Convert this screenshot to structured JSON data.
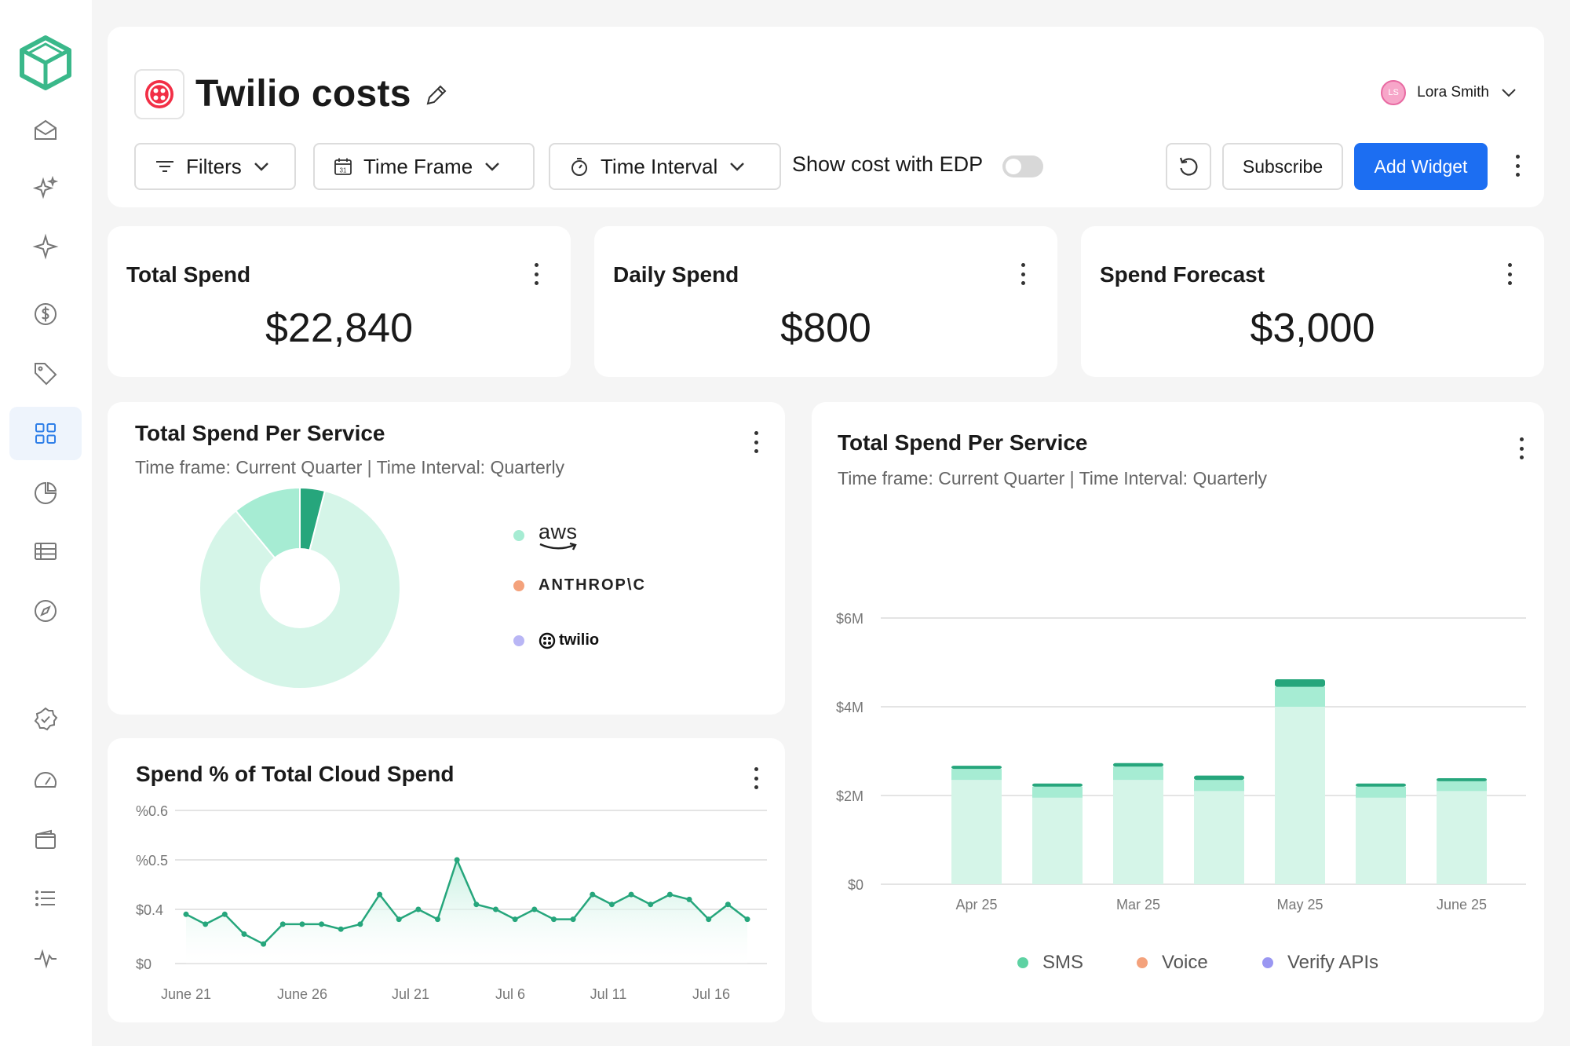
{
  "page": {
    "title": "Twilio costs"
  },
  "user": {
    "initials": "LS",
    "name": "Lora Smith"
  },
  "toolbar": {
    "filters_label": "Filters",
    "time_frame_label": "Time Frame",
    "time_interval_label": "Time Interval",
    "edp_label": "Show cost with EDP",
    "subscribe_label": "Subscribe",
    "add_widget_label": "Add Widget"
  },
  "kpis": [
    {
      "title": "Total Spend",
      "value": "$22,840"
    },
    {
      "title": "Daily Spend",
      "value": "$800"
    },
    {
      "title": "Spend Forecast",
      "value": "$3,000"
    }
  ],
  "pie_widget": {
    "title": "Total Spend Per Service",
    "subtitle": "Time frame: Current Quarter | Time Interval: Quarterly",
    "legend": [
      {
        "label": "aws",
        "color": "#a6ecd3"
      },
      {
        "label": "ANTHROP\\C",
        "color": "#f4a27c"
      },
      {
        "label": "twilio",
        "color": "#b9b6f5"
      }
    ]
  },
  "line_widget": {
    "title": "Spend % of Total Cloud Spend"
  },
  "bar_widget": {
    "title": "Total Spend Per Service",
    "subtitle": "Time frame: Current Quarter | Time Interval: Quarterly",
    "legend": [
      {
        "label": "SMS",
        "color": "#5ed2a3"
      },
      {
        "label": "Voice",
        "color": "#f4a27c"
      },
      {
        "label": "Verify APIs",
        "color": "#9a97f2"
      }
    ]
  },
  "colors": {
    "accent": "#1c6ef2",
    "brand_green": "#3ab88a",
    "twilio_red": "#f22f46"
  },
  "chart_data": [
    {
      "type": "pie",
      "title": "Total Spend Per Service",
      "categories": [
        "aws",
        "ANTHROP\\C",
        "twilio"
      ],
      "values": [
        85,
        11,
        4
      ],
      "colors": [
        "#d5f5e8",
        "#a6ecd3",
        "#26a67c"
      ],
      "donut": true
    },
    {
      "type": "area",
      "title": "Spend % of Total Cloud Spend",
      "x_ticks": [
        "June 21",
        "June 26",
        "Jul 21",
        "Jul 6",
        "Jul 11",
        "Jul 16"
      ],
      "y_ticks": [
        "%0.6",
        "%0.5",
        "$0.4",
        "$0"
      ],
      "values": [
        0.39,
        0.37,
        0.39,
        0.35,
        0.33,
        0.37,
        0.37,
        0.37,
        0.36,
        0.37,
        0.43,
        0.38,
        0.4,
        0.38,
        0.5,
        0.41,
        0.4,
        0.38,
        0.4,
        0.38,
        0.38,
        0.43,
        0.41,
        0.43,
        0.41,
        0.43,
        0.42,
        0.38,
        0.41,
        0.38
      ],
      "color": "#26a67c",
      "grid": true
    },
    {
      "type": "bar",
      "title": "Total Spend Per Service",
      "categories": [
        "Apr 25",
        "",
        "Mar 25",
        "",
        "May 25",
        "",
        "June 25"
      ],
      "y_ticks": [
        "$6M",
        "$4M",
        "$2M",
        "$0"
      ],
      "ylim": [
        0,
        6
      ],
      "series": [
        {
          "name": "SMS",
          "values": [
            2.35,
            1.95,
            2.35,
            2.1,
            4.0,
            1.95,
            2.1
          ],
          "color": "#d5f5e8"
        },
        {
          "name": "Voice",
          "values": [
            0.25,
            0.25,
            0.3,
            0.25,
            0.45,
            0.25,
            0.22
          ],
          "color": "#a6ecd3"
        },
        {
          "name": "Verify APIs",
          "values": [
            0.07,
            0.07,
            0.08,
            0.1,
            0.17,
            0.07,
            0.07
          ],
          "color": "#26a67c"
        }
      ],
      "legend": "bottom",
      "grid": true
    }
  ]
}
